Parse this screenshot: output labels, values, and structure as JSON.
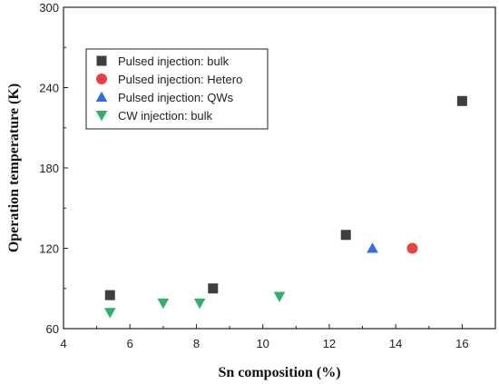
{
  "chart_data": {
    "type": "scatter",
    "title": "",
    "xlabel": "Sn composition (%)",
    "ylabel": "Operation temperature (K)",
    "xlim": [
      4,
      17
    ],
    "ylim": [
      60,
      300
    ],
    "xticks": [
      4,
      6,
      8,
      10,
      12,
      14,
      16
    ],
    "yticks": [
      60,
      120,
      180,
      240,
      300
    ],
    "grid": false,
    "legend_position": "top-left",
    "series": [
      {
        "name": "Pulsed injection: bulk",
        "marker": "square",
        "color": "#3f3f3f",
        "points": [
          [
            5.4,
            85
          ],
          [
            8.5,
            90
          ],
          [
            12.5,
            130
          ],
          [
            16.0,
            230
          ]
        ]
      },
      {
        "name": "Pulsed injection: Hetero",
        "marker": "circle",
        "color": "#e8433f",
        "points": [
          [
            14.5,
            120
          ]
        ]
      },
      {
        "name": "Pulsed injection: QWs",
        "marker": "triangle-up",
        "color": "#2f6fde",
        "points": [
          [
            13.3,
            120
          ]
        ]
      },
      {
        "name": "CW injection: bulk",
        "marker": "triangle-down",
        "color": "#33b067",
        "points": [
          [
            5.4,
            72
          ],
          [
            7.0,
            79
          ],
          [
            8.1,
            79
          ],
          [
            10.5,
            84
          ]
        ]
      }
    ]
  }
}
